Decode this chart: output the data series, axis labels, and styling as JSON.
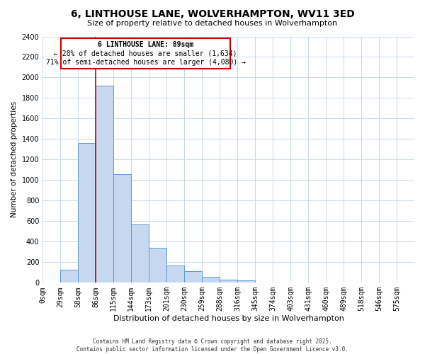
{
  "title": "6, LINTHOUSE LANE, WOLVERHAMPTON, WV11 3ED",
  "subtitle": "Size of property relative to detached houses in Wolverhampton",
  "xlabel": "Distribution of detached houses by size in Wolverhampton",
  "ylabel": "Number of detached properties",
  "bin_labels": [
    "0sqm",
    "29sqm",
    "58sqm",
    "86sqm",
    "115sqm",
    "144sqm",
    "173sqm",
    "201sqm",
    "230sqm",
    "259sqm",
    "288sqm",
    "316sqm",
    "345sqm",
    "374sqm",
    "403sqm",
    "431sqm",
    "460sqm",
    "489sqm",
    "518sqm",
    "546sqm",
    "575sqm"
  ],
  "bin_values": [
    0,
    125,
    1360,
    1920,
    1060,
    570,
    340,
    165,
    110,
    60,
    30,
    20,
    0,
    0,
    0,
    0,
    0,
    0,
    0,
    0,
    0
  ],
  "bar_color": "#c5d8f0",
  "bar_edge_color": "#5b9bd5",
  "property_line_color": "#cc0000",
  "annotation_title": "6 LINTHOUSE LANE: 89sqm",
  "annotation_line1": "← 28% of detached houses are smaller (1,634)",
  "annotation_line2": "71% of semi-detached houses are larger (4,080) →",
  "annotation_box_color": "#cc0000",
  "ylim": [
    0,
    2400
  ],
  "yticks": [
    0,
    200,
    400,
    600,
    800,
    1000,
    1200,
    1400,
    1600,
    1800,
    2000,
    2200,
    2400
  ],
  "footer_line1": "Contains HM Land Registry data © Crown copyright and database right 2025.",
  "footer_line2": "Contains public sector information licensed under the Open Government Licence v3.0.",
  "background_color": "#ffffff",
  "grid_color": "#c8d8e8",
  "title_fontsize": 10,
  "subtitle_fontsize": 8,
  "xlabel_fontsize": 8,
  "ylabel_fontsize": 7.5,
  "tick_fontsize": 7,
  "footer_fontsize": 5.5
}
